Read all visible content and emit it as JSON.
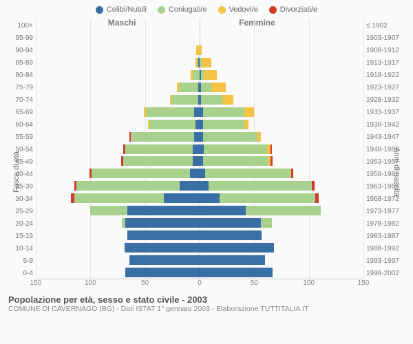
{
  "type": "population-pyramid",
  "legend": [
    {
      "label": "Celibi/Nubili",
      "color": "#3a6fa6"
    },
    {
      "label": "Coniugati/e",
      "color": "#a9d18e"
    },
    {
      "label": "Vedovi/e",
      "color": "#f5c344"
    },
    {
      "label": "Divorziati/e",
      "color": "#d23a2e"
    }
  ],
  "header_male": "Maschi",
  "header_female": "Femmine",
  "ylabel_left": "Fasce di età",
  "ylabel_right": "Anni di nascita",
  "caption_title": "Popolazione per età, sesso e stato civile - 2003",
  "caption_sub": "COMUNE DI CAVERNAGO (BG) - Dati ISTAT 1° gennaio 2003 - Elaborazione TUTTITALIA.IT",
  "xaxis": {
    "min": -150,
    "max": 150,
    "ticks": [
      -150,
      -100,
      -50,
      0,
      50,
      100,
      150
    ],
    "tick_labels": [
      "150",
      "100",
      "50",
      "0",
      "50",
      "100",
      "150"
    ]
  },
  "grid_color": "#e5e5e5",
  "background_color": "#fafafa",
  "bar_height_ratio": 0.78,
  "ages": [
    "100+",
    "95-99",
    "90-94",
    "85-89",
    "80-84",
    "75-79",
    "70-74",
    "65-69",
    "60-64",
    "55-59",
    "50-54",
    "45-49",
    "40-44",
    "35-39",
    "30-34",
    "25-29",
    "20-24",
    "15-19",
    "10-14",
    "5-9",
    "0-4"
  ],
  "years": [
    "≤ 1902",
    "1903-1907",
    "1908-1912",
    "1913-1917",
    "1918-1922",
    "1923-1927",
    "1928-1932",
    "1933-1937",
    "1938-1942",
    "1943-1947",
    "1948-1952",
    "1953-1957",
    "1958-1962",
    "1963-1967",
    "1968-1972",
    "1973-1977",
    "1978-1982",
    "1983-1987",
    "1988-1992",
    "1993-1997",
    "1998-2002"
  ],
  "rows": [
    {
      "m": {
        "cel": 0,
        "con": 0,
        "ved": 0,
        "div": 0
      },
      "f": {
        "cel": 0,
        "con": 0,
        "ved": 0,
        "div": 0
      }
    },
    {
      "m": {
        "cel": 0,
        "con": 0,
        "ved": 0,
        "div": 0
      },
      "f": {
        "cel": 0,
        "con": 0,
        "ved": 0,
        "div": 0
      }
    },
    {
      "m": {
        "cel": 0,
        "con": 0,
        "ved": 3,
        "div": 0
      },
      "f": {
        "cel": 0,
        "con": 0,
        "ved": 2,
        "div": 0
      }
    },
    {
      "m": {
        "cel": 1,
        "con": 1,
        "ved": 2,
        "div": 0
      },
      "f": {
        "cel": 0,
        "con": 2,
        "ved": 9,
        "div": 0
      }
    },
    {
      "m": {
        "cel": 0,
        "con": 6,
        "ved": 2,
        "div": 0
      },
      "f": {
        "cel": 1,
        "con": 3,
        "ved": 12,
        "div": 0
      }
    },
    {
      "m": {
        "cel": 1,
        "con": 18,
        "ved": 2,
        "div": 0
      },
      "f": {
        "cel": 1,
        "con": 10,
        "ved": 13,
        "div": 0
      }
    },
    {
      "m": {
        "cel": 1,
        "con": 25,
        "ved": 1,
        "div": 0
      },
      "f": {
        "cel": 1,
        "con": 20,
        "ved": 10,
        "div": 0
      }
    },
    {
      "m": {
        "cel": 5,
        "con": 44,
        "ved": 2,
        "div": 0
      },
      "f": {
        "cel": 3,
        "con": 38,
        "ved": 9,
        "div": 0
      }
    },
    {
      "m": {
        "cel": 4,
        "con": 42,
        "ved": 1,
        "div": 0
      },
      "f": {
        "cel": 3,
        "con": 38,
        "ved": 4,
        "div": 0
      }
    },
    {
      "m": {
        "cel": 5,
        "con": 58,
        "ved": 0,
        "div": 1
      },
      "f": {
        "cel": 3,
        "con": 50,
        "ved": 3,
        "div": 0
      }
    },
    {
      "m": {
        "cel": 6,
        "con": 62,
        "ved": 0,
        "div": 2
      },
      "f": {
        "cel": 4,
        "con": 58,
        "ved": 3,
        "div": 1
      }
    },
    {
      "m": {
        "cel": 6,
        "con": 64,
        "ved": 0,
        "div": 2
      },
      "f": {
        "cel": 3,
        "con": 60,
        "ved": 2,
        "div": 2
      }
    },
    {
      "m": {
        "cel": 9,
        "con": 90,
        "ved": 0,
        "div": 2
      },
      "f": {
        "cel": 5,
        "con": 78,
        "ved": 1,
        "div": 2
      }
    },
    {
      "m": {
        "cel": 18,
        "con": 95,
        "ved": 0,
        "div": 2
      },
      "f": {
        "cel": 8,
        "con": 95,
        "ved": 0,
        "div": 2
      }
    },
    {
      "m": {
        "cel": 33,
        "con": 82,
        "ved": 0,
        "div": 3
      },
      "f": {
        "cel": 18,
        "con": 88,
        "ved": 0,
        "div": 3
      }
    },
    {
      "m": {
        "cel": 66,
        "con": 34,
        "ved": 0,
        "div": 0
      },
      "f": {
        "cel": 42,
        "con": 69,
        "ved": 0,
        "div": 0
      }
    },
    {
      "m": {
        "cel": 68,
        "con": 3,
        "ved": 0,
        "div": 0
      },
      "f": {
        "cel": 56,
        "con": 10,
        "ved": 0,
        "div": 0
      }
    },
    {
      "m": {
        "cel": 66,
        "con": 0,
        "ved": 0,
        "div": 0
      },
      "f": {
        "cel": 57,
        "con": 0,
        "ved": 0,
        "div": 0
      }
    },
    {
      "m": {
        "cel": 69,
        "con": 0,
        "ved": 0,
        "div": 0
      },
      "f": {
        "cel": 68,
        "con": 0,
        "ved": 0,
        "div": 0
      }
    },
    {
      "m": {
        "cel": 64,
        "con": 0,
        "ved": 0,
        "div": 0
      },
      "f": {
        "cel": 60,
        "con": 0,
        "ved": 0,
        "div": 0
      }
    },
    {
      "m": {
        "cel": 68,
        "con": 0,
        "ved": 0,
        "div": 0
      },
      "f": {
        "cel": 67,
        "con": 0,
        "ved": 0,
        "div": 0
      }
    }
  ]
}
